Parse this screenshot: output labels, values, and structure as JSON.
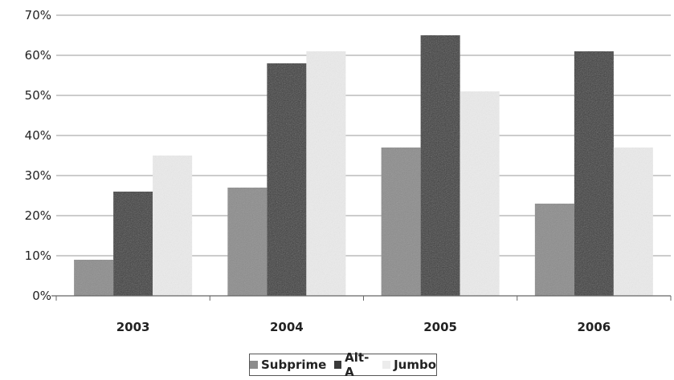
{
  "chart_data": {
    "type": "bar",
    "title": "",
    "xlabel": "",
    "ylabel": "",
    "categories": [
      "2003",
      "2004",
      "2005",
      "2006"
    ],
    "series": [
      {
        "name": "Subprime",
        "values": [
          9,
          27,
          37,
          23
        ],
        "color": "#8c8c8c"
      },
      {
        "name": "Alt-A",
        "values": [
          26,
          58,
          65,
          61
        ],
        "color": "#3a3a3a"
      },
      {
        "name": "Jumbo",
        "values": [
          35,
          61,
          51,
          37
        ],
        "color": "#ececec"
      }
    ],
    "ylim": [
      0,
      70
    ],
    "yticks": [
      "0%",
      "10%",
      "20%",
      "30%",
      "40%",
      "50%",
      "60%",
      "70%"
    ],
    "grid": true,
    "legend_position": "bottom"
  }
}
